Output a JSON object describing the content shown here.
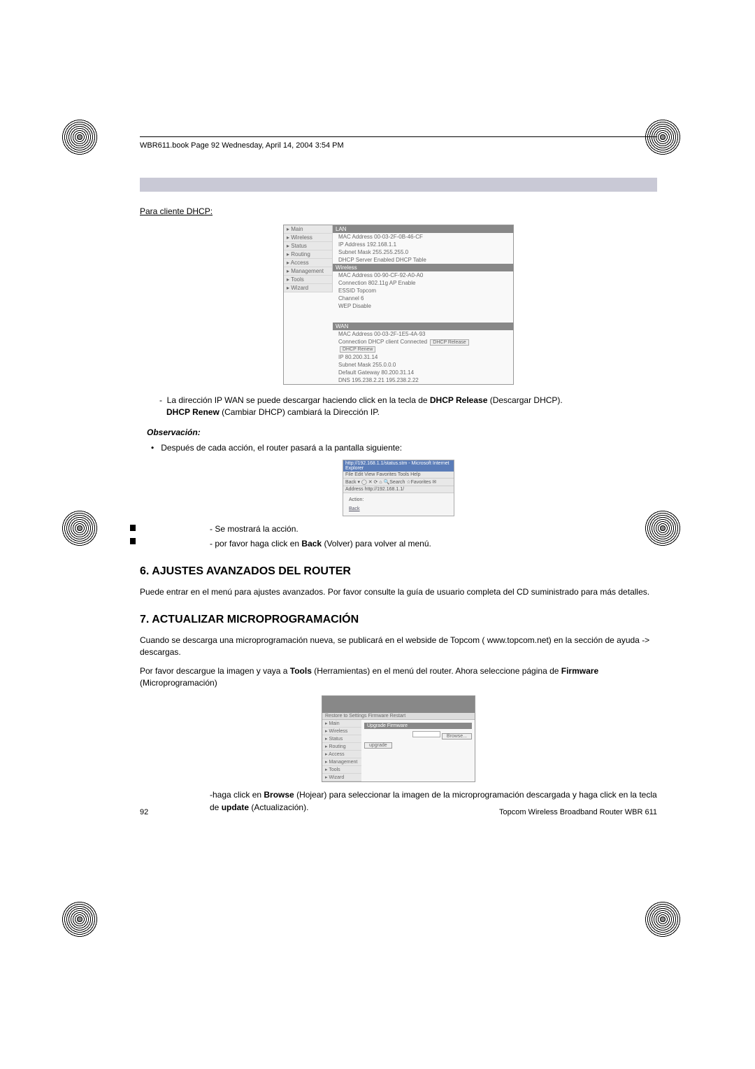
{
  "header": "WBR611.book  Page 92  Wednesday, April 14, 2004  3:54 PM",
  "intro": "Para cliente DHCP:",
  "ss1": {
    "sidebar": [
      "Main",
      "Wireless",
      "Status",
      "Routing",
      "Access",
      "Management",
      "Tools",
      "Wizard"
    ],
    "lan_hdr": "LAN",
    "lan": [
      "MAC Address 00-03-2F-0B-46-CF",
      "IP Address 192.168.1.1",
      "Subnet Mask 255.255.255.0",
      "DHCP Server Enabled  DHCP Table"
    ],
    "wl_hdr": "Wireless",
    "wl": [
      "MAC Address 00-90-CF-92-A0-A0",
      "Connection 802.11g AP Enable",
      "ESSID Topcom",
      "Channel 6",
      "WEP Disable"
    ],
    "wan_hdr": "WAN",
    "wan_mac": "MAC Address 00-03-2F-1E5-4A-93",
    "wan_conn": "Connection DHCP client Connected",
    "btn_release": "DHCP Release",
    "btn_renew": "DHCP Renew",
    "wan_rest": [
      "IP 80.200.31.14",
      "Subnet Mask 255.0.0.0",
      "Default Gateway 80.200.31.14",
      "DNS 195.238.2.21 195.238.2.22"
    ]
  },
  "bullet1a": "La dirección IP WAN se puede descargar haciendo click en la tecla de ",
  "bullet1b": "DHCP Release",
  "bullet1c": " (Descargar DHCP). ",
  "bullet1d": "DHCP Renew",
  "bullet1e": " (Cambiar DHCP) cambiará la Dirección IP.",
  "obs": "Observación:",
  "dot1": "Después de cada acción, el router pasará a la pantalla siguiente:",
  "ss2": {
    "title": "http://192.168.1.1/status.stm - Microsoft Internet Explorer",
    "menu": "File  Edit  View  Favorites  Tools  Help",
    "toolbar": "Back ▾  ◯  ✕  ⟳  ⌂  🔍Search  ☆Favorites  ✉",
    "addr": "Address http://192.168.1.1/",
    "body1": "Action:",
    "body2": "Back"
  },
  "dash1": "Se mostrará la acción.",
  "dash2a": "por favor haga click en ",
  "dash2b": "Back",
  "dash2c": " (Volver) para volver al menú.",
  "h6": "6.  AJUSTES AVANZADOS DEL ROUTER",
  "p6": "Puede entrar en el menú para ajustes avanzados. Por favor consulte la guía de usuario completa del CD suministrado para más detalles.",
  "h7": "7.  ACTUALIZAR MICROPROGRAMACIÓN",
  "p7a": "Cuando se descarga una microprogramación nueva, se publicará en el webside de Topcom ( www.topcom.net) en la sección de ayuda -> descargas.",
  "p7b_a": "Por favor descargue la imagen y vaya a ",
  "p7b_b": "Tools",
  "p7b_c": " (Herramientas) en el menú del router. Ahora seleccione página de ",
  "p7b_d": "Firmware",
  "p7b_e": " (Microprogramación)",
  "ss3": {
    "sidebar": [
      "Main",
      "Wireless",
      "Status",
      "Routing",
      "Access",
      "Management",
      "Tools",
      "Wizard"
    ],
    "bar": "Restore to Settings   Firmware   Restart",
    "hdr": "Upgrade Firmware",
    "browse": "Browse...",
    "upgrade": "upgrade"
  },
  "footer_a": "-haga click en ",
  "footer_b": "Browse",
  "footer_c": " (Hojear) para seleccionar la imagen de la microprogramación descargada y haga click en la tecla de ",
  "footer_d": "update",
  "footer_e": " (Actualización).",
  "pagenum": "92",
  "footright": "Topcom Wireless Broadband Router WBR 611"
}
